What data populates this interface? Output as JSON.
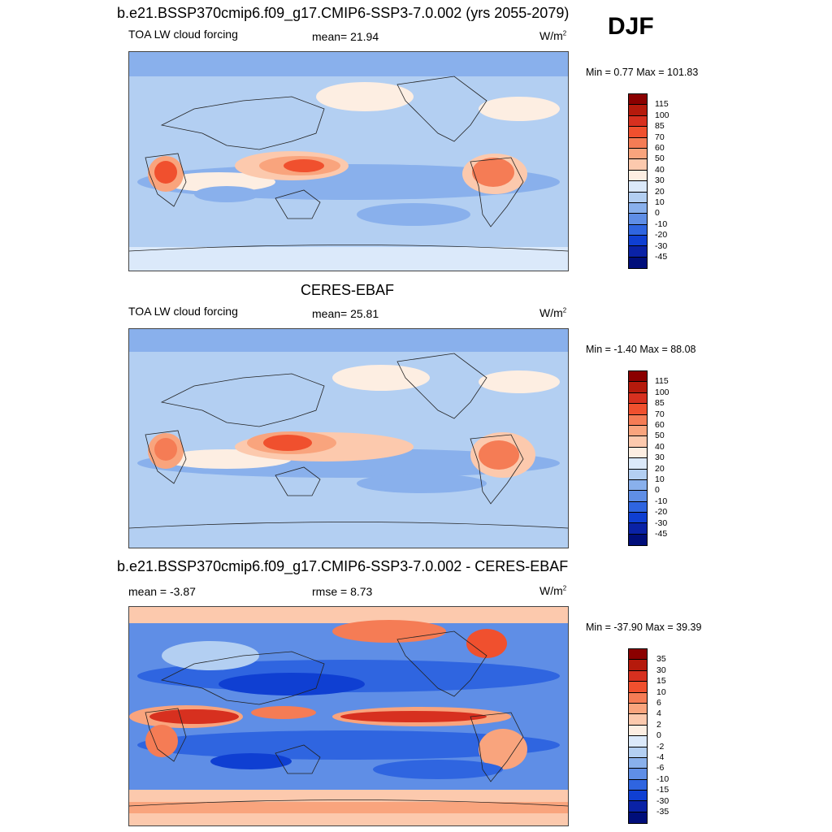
{
  "season": "DJF",
  "panels": [
    {
      "title": "b.e21.BSSP370cmip6.f09_g17.CMIP6-SSP3-7.0.002 (yrs 2055-2079)",
      "left": "TOA LW cloud forcing",
      "center": "mean=  21.94",
      "units_base": "W/m",
      "units_exp": "2",
      "minmax": "Min =   0.77 Max = 101.83"
    },
    {
      "title": "CERES-EBAF",
      "left": "TOA LW cloud forcing",
      "center": "mean=  25.81",
      "units_base": "W/m",
      "units_exp": "2",
      "minmax": "Min =  -1.40 Max =  88.08"
    },
    {
      "title": "b.e21.BSSP370cmip6.f09_g17.CMIP6-SSP3-7.0.002 - CERES-EBAF",
      "left": "mean =  -3.87",
      "center": "rmse =   8.73",
      "units_base": "W/m",
      "units_exp": "2",
      "minmax": "Min = -37.90 Max =  39.39"
    }
  ],
  "colorbars": {
    "field": {
      "labels": [
        "115",
        "100",
        "85",
        "70",
        "60",
        "50",
        "40",
        "30",
        "20",
        "10",
        "0",
        "-10",
        "-20",
        "-30",
        "-45"
      ],
      "colors": [
        "#8b0000",
        "#b51a0c",
        "#d7301f",
        "#f0502e",
        "#f57c55",
        "#f9a47d",
        "#fcc9ad",
        "#fdeee2",
        "#dbe9fa",
        "#b3cff2",
        "#89b0ec",
        "#5f8ee6",
        "#2f65e0",
        "#0f3fd2",
        "#0a22a6",
        "#000e7a"
      ]
    },
    "diff": {
      "labels": [
        "35",
        "30",
        "15",
        "10",
        "6",
        "4",
        "2",
        "0",
        "-2",
        "-4",
        "-6",
        "-10",
        "-15",
        "-30",
        "-35"
      ],
      "colors": [
        "#8b0000",
        "#b51a0c",
        "#d7301f",
        "#f0502e",
        "#f57c55",
        "#f9a47d",
        "#fcc9ad",
        "#fdeee2",
        "#dbe9fa",
        "#b3cff2",
        "#89b0ec",
        "#5f8ee6",
        "#2f65e0",
        "#0f3fd2",
        "#0a22a6",
        "#000e7a"
      ]
    }
  }
}
